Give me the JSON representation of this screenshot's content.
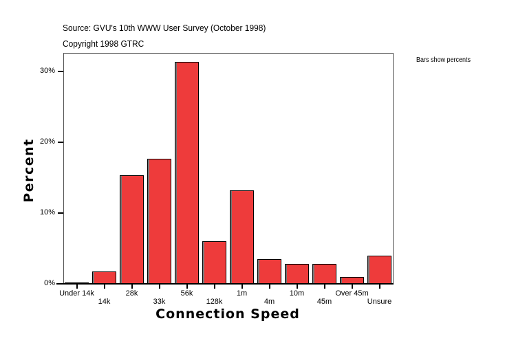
{
  "header": {
    "source": "Source: GVU's 10th WWW User Survey (October 1998)",
    "copyright": "Copyright 1998 GTRC",
    "note": "Bars show percents"
  },
  "axes": {
    "y_title": "Percent",
    "x_title": "Connection Speed",
    "y_ticks": [
      "0%",
      "10%",
      "20%",
      "30%"
    ]
  },
  "colors": {
    "bar": "#ee3b3b",
    "border": "#000000"
  },
  "chart_data": {
    "type": "bar",
    "title": "Source: GVU's 10th WWW User Survey (October 1998)",
    "subtitle": "Copyright 1998 GTRC",
    "annotation": "Bars show percents",
    "xlabel": "Connection Speed",
    "ylabel": "Percent",
    "categories": [
      "Under 14k",
      "14k",
      "28k",
      "33k",
      "56k",
      "128k",
      "1m",
      "4m",
      "10m",
      "45m",
      "Over 45m",
      "Unsure"
    ],
    "values": [
      0.1,
      1.7,
      15.3,
      17.7,
      31.4,
      6.0,
      13.2,
      3.5,
      2.8,
      2.8,
      1.0,
      4.0
    ],
    "ylim": [
      0,
      32.6
    ],
    "yticks": [
      0,
      10,
      20,
      30
    ],
    "ytick_labels": [
      "0%",
      "10%",
      "20%",
      "30%"
    ],
    "grid": false,
    "legend": "none"
  }
}
